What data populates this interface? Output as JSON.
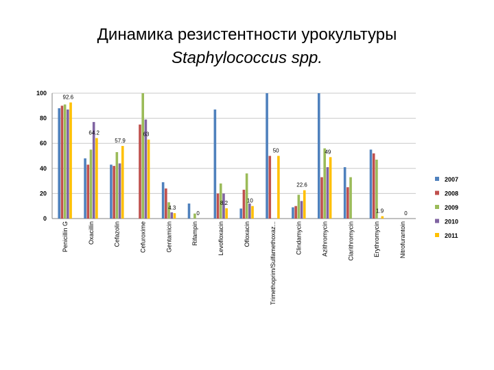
{
  "title_line1": "Динамика резистентности урокультуры",
  "title_line2": "Staphylococcus spp.",
  "chart_data": {
    "type": "bar",
    "title": "Динамика резистентности урокультуры Staphylococcus spp.",
    "ylim": [
      0,
      100
    ],
    "yticks": [
      "0",
      "20",
      "40",
      "60",
      "80",
      "100"
    ],
    "grid": true,
    "legend_position": "right",
    "categories": [
      "Penicillin G",
      "Oxacillin",
      "Cefazolin",
      "Cefuroxime",
      "Gentamicin",
      "Rifampin",
      "Levofloxacin",
      "Ofloxacin",
      "Trimethoprim/Sulfamethoxaz...",
      "Clindamycin",
      "Azithromycin",
      "Clarithromycin",
      "Erythromycin",
      "Nitrofurantoin"
    ],
    "series": [
      {
        "name": "2007",
        "color": "#4f81bd",
        "values": [
          88,
          48,
          43,
          0,
          29,
          12,
          87,
          8,
          100,
          9,
          100,
          41,
          55,
          0
        ]
      },
      {
        "name": "2008",
        "color": "#c0504d",
        "values": [
          90,
          43,
          42,
          75,
          24,
          0,
          20,
          23,
          50,
          10,
          33,
          25,
          52,
          0
        ]
      },
      {
        "name": "2009",
        "color": "#9bbb59",
        "values": [
          91,
          55,
          53,
          100,
          13,
          4,
          28,
          36,
          0,
          19,
          56,
          33,
          47,
          0
        ]
      },
      {
        "name": "2010",
        "color": "#8064a2",
        "values": [
          87,
          77,
          44,
          79,
          5,
          0,
          20,
          12,
          0,
          14,
          41,
          0,
          0,
          0
        ]
      },
      {
        "name": "2011",
        "color": "#ffc000",
        "values": [
          92.6,
          64.2,
          57.9,
          63,
          4.3,
          0,
          8.2,
          10,
          50,
          22.6,
          49,
          0,
          1.9,
          0
        ]
      }
    ],
    "data_labels": [
      {
        "category": 0,
        "series": 4,
        "text": "92.6"
      },
      {
        "category": 1,
        "series": 4,
        "text": "64.2"
      },
      {
        "category": 2,
        "series": 4,
        "text": "57.9"
      },
      {
        "category": 3,
        "series": 4,
        "text": "63"
      },
      {
        "category": 4,
        "series": 4,
        "text": "4.3"
      },
      {
        "category": 5,
        "series": 4,
        "text": "0"
      },
      {
        "category": 6,
        "series": 4,
        "text": "8.2"
      },
      {
        "category": 7,
        "series": 4,
        "text": "10"
      },
      {
        "category": 8,
        "series": 4,
        "text": "50"
      },
      {
        "category": 9,
        "series": 4,
        "text": "22.6"
      },
      {
        "category": 10,
        "series": 4,
        "text": "49"
      },
      {
        "category": 12,
        "series": 4,
        "text": "1.9"
      },
      {
        "category": 13,
        "series": 4,
        "text": "0"
      }
    ]
  }
}
